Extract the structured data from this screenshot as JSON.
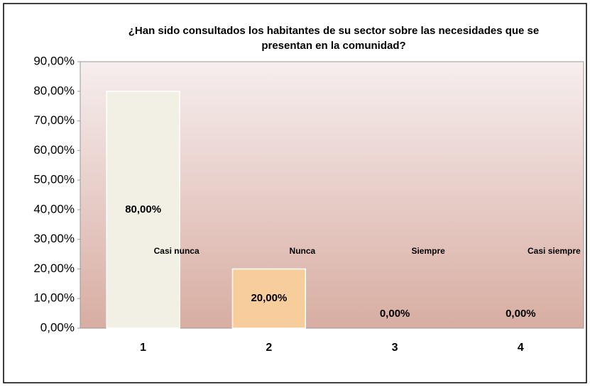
{
  "chart_data": {
    "type": "bar",
    "title": "¿Han sido consultados los habitantes de su sector sobre las necesidades que se presentan en la comunidad?",
    "categories": [
      "1",
      "2",
      "3",
      "4"
    ],
    "values": [
      80,
      20,
      0,
      0
    ],
    "value_labels": [
      "80,00%",
      "20,00%",
      "0,00%",
      "0,00%"
    ],
    "point_labels": [
      "Casi nunca",
      "Nunca",
      "Siempre",
      "Casi siempre"
    ],
    "colors": [
      "#f2f0e4",
      "#f8cd9c",
      "#e8d0c8",
      "#e8d0c8"
    ],
    "ylim": [
      0,
      90
    ],
    "yticks": [
      {
        "value": 0,
        "label": "0,00%"
      },
      {
        "value": 10,
        "label": "10,00%"
      },
      {
        "value": 20,
        "label": "20,00%"
      },
      {
        "value": 30,
        "label": "30,00%"
      },
      {
        "value": 40,
        "label": "40,00%"
      },
      {
        "value": 50,
        "label": "50,00%"
      },
      {
        "value": 60,
        "label": "60,00%"
      },
      {
        "value": 70,
        "label": "70,00%"
      },
      {
        "value": 80,
        "label": "80,00%"
      },
      {
        "value": 90,
        "label": "90,00%"
      }
    ],
    "grid": false
  }
}
